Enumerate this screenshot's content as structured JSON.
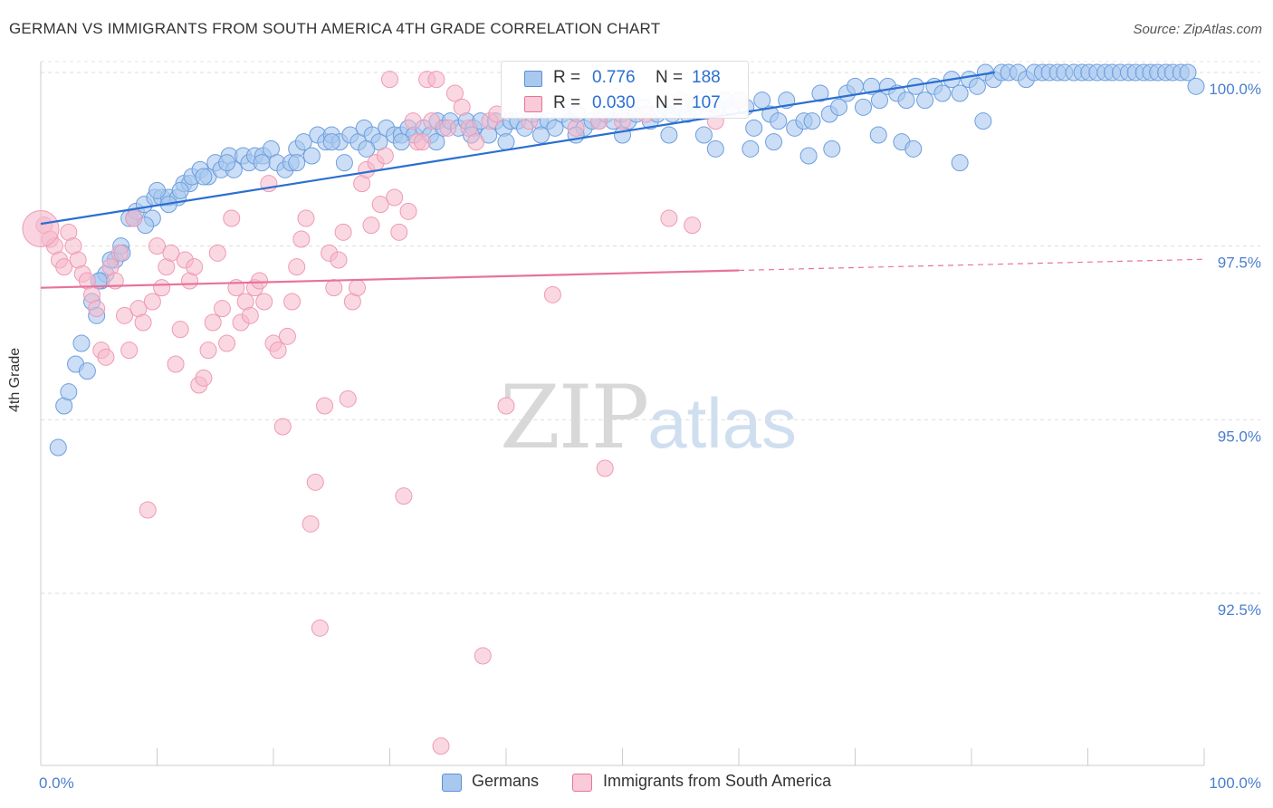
{
  "title": "GERMAN VS IMMIGRANTS FROM SOUTH AMERICA 4TH GRADE CORRELATION CHART",
  "source": "Source: ZipAtlas.com",
  "watermark": {
    "zip": "ZIP",
    "atlas": "atlas"
  },
  "legend": {
    "series1": {
      "r_label": "R =",
      "r_value": "0.776",
      "n_label": "N =",
      "n_value": "188"
    },
    "series2": {
      "r_label": "R =",
      "r_value": "0.030",
      "n_label": "N =",
      "n_value": "107"
    }
  },
  "chart_data": {
    "type": "scatter",
    "title": "GERMAN VS IMMIGRANTS FROM SOUTH AMERICA 4TH GRADE CORRELATION CHART",
    "xlabel": "",
    "ylabel": "4th Grade",
    "xlim": [
      0,
      100
    ],
    "ylim": [
      90.0,
      100.4
    ],
    "x_tick_labels": [
      "0.0%",
      "100.0%"
    ],
    "y_ticks": [
      {
        "value": 100.0,
        "label": "100.0%"
      },
      {
        "value": 97.5,
        "label": "97.5%"
      },
      {
        "value": 95.0,
        "label": "95.0%"
      },
      {
        "value": 92.5,
        "label": "92.5%"
      }
    ],
    "grid": true,
    "colors": {
      "blue_fill": "#a9c8ee",
      "blue_line": "#2a6fd1",
      "pink_fill": "#f5b8cb",
      "pink_line": "#e8739a",
      "tick_label": "#4a7fcf"
    },
    "series": [
      {
        "name": "Germans",
        "color": "#2a6fd1",
        "trend": {
          "x0": 0,
          "y0": 97.82,
          "x1": 82,
          "y1": 100.0,
          "dashed_to": null
        },
        "points": [
          [
            1.5,
            94.6
          ],
          [
            2,
            95.2
          ],
          [
            2.4,
            95.4
          ],
          [
            3,
            95.8
          ],
          [
            3.5,
            96.1
          ],
          [
            4,
            95.7
          ],
          [
            4.4,
            96.7
          ],
          [
            4.8,
            96.5
          ],
          [
            5.2,
            97.0
          ],
          [
            5.6,
            97.1
          ],
          [
            6.4,
            97.3
          ],
          [
            6.9,
            97.5
          ],
          [
            7.6,
            97.9
          ],
          [
            8.2,
            98.0
          ],
          [
            8.9,
            98.1
          ],
          [
            9.6,
            97.9
          ],
          [
            9.8,
            98.2
          ],
          [
            10.4,
            98.2
          ],
          [
            11,
            98.2
          ],
          [
            11.8,
            98.2
          ],
          [
            12.3,
            98.4
          ],
          [
            12.8,
            98.4
          ],
          [
            13,
            98.5
          ],
          [
            13.7,
            98.6
          ],
          [
            14.4,
            98.5
          ],
          [
            15,
            98.7
          ],
          [
            15.5,
            98.6
          ],
          [
            16.2,
            98.8
          ],
          [
            16.6,
            98.6
          ],
          [
            17.4,
            98.8
          ],
          [
            17.9,
            98.7
          ],
          [
            18.4,
            98.8
          ],
          [
            19.1,
            98.8
          ],
          [
            19.8,
            98.9
          ],
          [
            20.3,
            98.7
          ],
          [
            21,
            98.6
          ],
          [
            21.5,
            98.7
          ],
          [
            22,
            98.9
          ],
          [
            22.6,
            99.0
          ],
          [
            23.3,
            98.8
          ],
          [
            23.8,
            99.1
          ],
          [
            24.5,
            99.0
          ],
          [
            25,
            99.1
          ],
          [
            25.7,
            99.0
          ],
          [
            26.1,
            98.7
          ],
          [
            26.6,
            99.1
          ],
          [
            27.3,
            99.0
          ],
          [
            27.8,
            99.2
          ],
          [
            28.5,
            99.1
          ],
          [
            29.1,
            99.0
          ],
          [
            29.7,
            99.2
          ],
          [
            30.4,
            99.1
          ],
          [
            31,
            99.1
          ],
          [
            31.6,
            99.2
          ],
          [
            32.1,
            99.1
          ],
          [
            32.9,
            99.2
          ],
          [
            33.5,
            99.1
          ],
          [
            34.1,
            99.3
          ],
          [
            34.6,
            99.2
          ],
          [
            35.2,
            99.3
          ],
          [
            35.9,
            99.2
          ],
          [
            36.6,
            99.3
          ],
          [
            37.2,
            99.2
          ],
          [
            37.8,
            99.3
          ],
          [
            38.5,
            99.1
          ],
          [
            39.1,
            99.3
          ],
          [
            39.8,
            99.2
          ],
          [
            40.4,
            99.3
          ],
          [
            41,
            99.3
          ],
          [
            41.6,
            99.2
          ],
          [
            42.3,
            99.4
          ],
          [
            42.9,
            99.3
          ],
          [
            43.6,
            99.3
          ],
          [
            44.2,
            99.2
          ],
          [
            44.8,
            99.4
          ],
          [
            45.5,
            99.3
          ],
          [
            46.1,
            99.4
          ],
          [
            46.7,
            99.2
          ],
          [
            47.4,
            99.3
          ],
          [
            48,
            99.3
          ],
          [
            48.6,
            99.4
          ],
          [
            49.2,
            99.3
          ],
          [
            49.9,
            99.4
          ],
          [
            50.5,
            99.3
          ],
          [
            51.2,
            99.4
          ],
          [
            51.8,
            99.5
          ],
          [
            52.4,
            99.3
          ],
          [
            53,
            99.4
          ],
          [
            53.7,
            99.5
          ],
          [
            54.3,
            99.4
          ],
          [
            55,
            99.5
          ],
          [
            55.6,
            99.4
          ],
          [
            56.3,
            99.5
          ],
          [
            56.9,
            99.6
          ],
          [
            57.6,
            99.5
          ],
          [
            58.2,
            99.5
          ],
          [
            58.8,
            99.6
          ],
          [
            59.4,
            99.5
          ],
          [
            60,
            99.6
          ],
          [
            60.6,
            99.5
          ],
          [
            61.3,
            99.2
          ],
          [
            62,
            99.6
          ],
          [
            62.7,
            99.4
          ],
          [
            63.4,
            99.3
          ],
          [
            64.1,
            99.6
          ],
          [
            64.8,
            99.2
          ],
          [
            65.6,
            99.3
          ],
          [
            66.3,
            99.3
          ],
          [
            67,
            99.7
          ],
          [
            67.8,
            99.4
          ],
          [
            68.6,
            99.5
          ],
          [
            69.3,
            99.7
          ],
          [
            70,
            99.8
          ],
          [
            70.7,
            99.5
          ],
          [
            71.4,
            99.8
          ],
          [
            72.1,
            99.6
          ],
          [
            72.8,
            99.8
          ],
          [
            73.6,
            99.7
          ],
          [
            74.4,
            99.6
          ],
          [
            75.2,
            99.8
          ],
          [
            76,
            99.6
          ],
          [
            76.8,
            99.8
          ],
          [
            77.5,
            99.7
          ],
          [
            78.3,
            99.9
          ],
          [
            79,
            99.7
          ],
          [
            79.8,
            99.9
          ],
          [
            80.5,
            99.8
          ],
          [
            81.2,
            100.0
          ],
          [
            81.9,
            99.9
          ],
          [
            82.6,
            100.0
          ],
          [
            83.2,
            100.0
          ],
          [
            84,
            100.0
          ],
          [
            84.7,
            99.9
          ],
          [
            85.4,
            100.0
          ],
          [
            86.1,
            100.0
          ],
          [
            86.7,
            100.0
          ],
          [
            87.4,
            100.0
          ],
          [
            88,
            100.0
          ],
          [
            88.8,
            100.0
          ],
          [
            89.5,
            100.0
          ],
          [
            90.1,
            100.0
          ],
          [
            90.8,
            100.0
          ],
          [
            91.5,
            100.0
          ],
          [
            92.1,
            100.0
          ],
          [
            92.8,
            100.0
          ],
          [
            93.5,
            100.0
          ],
          [
            94.1,
            100.0
          ],
          [
            94.8,
            100.0
          ],
          [
            95.4,
            100.0
          ],
          [
            96,
            100.0
          ],
          [
            96.7,
            100.0
          ],
          [
            97.3,
            100.0
          ],
          [
            98,
            100.0
          ],
          [
            98.6,
            100.0
          ],
          [
            99.3,
            99.8
          ],
          [
            58,
            98.9
          ],
          [
            61,
            98.9
          ],
          [
            66,
            98.8
          ],
          [
            68,
            98.9
          ],
          [
            72,
            99.1
          ],
          [
            74,
            99.0
          ],
          [
            75,
            98.9
          ],
          [
            79,
            98.7
          ],
          [
            81,
            99.3
          ],
          [
            63,
            99.0
          ],
          [
            57,
            99.1
          ],
          [
            54,
            99.1
          ],
          [
            50,
            99.1
          ],
          [
            46,
            99.1
          ],
          [
            43,
            99.1
          ],
          [
            40,
            99.0
          ],
          [
            37,
            99.1
          ],
          [
            34,
            99.0
          ],
          [
            31,
            99.0
          ],
          [
            28,
            98.9
          ],
          [
            25,
            99.0
          ],
          [
            22,
            98.7
          ],
          [
            19,
            98.7
          ],
          [
            16,
            98.7
          ],
          [
            14,
            98.5
          ],
          [
            12,
            98.3
          ],
          [
            10,
            98.3
          ],
          [
            8,
            97.9
          ],
          [
            6,
            97.3
          ],
          [
            5,
            97.0
          ],
          [
            7,
            97.4
          ],
          [
            9,
            97.8
          ],
          [
            11,
            98.1
          ]
        ]
      },
      {
        "name": "Immigrants from South America",
        "color": "#e8739a",
        "trend": {
          "x0": 0,
          "y0": 96.9,
          "x1": 60,
          "y1": 97.15,
          "dashed_to": {
            "x": 100,
            "y": 97.31
          }
        },
        "points": [
          [
            0.3,
            97.8
          ],
          [
            0.8,
            97.6
          ],
          [
            1.2,
            97.5
          ],
          [
            1.6,
            97.3
          ],
          [
            2,
            97.2
          ],
          [
            2.4,
            97.7
          ],
          [
            2.8,
            97.5
          ],
          [
            3.2,
            97.3
          ],
          [
            3.6,
            97.1
          ],
          [
            4,
            97.0
          ],
          [
            4.4,
            96.8
          ],
          [
            4.8,
            96.6
          ],
          [
            5.2,
            96.0
          ],
          [
            5.6,
            95.9
          ],
          [
            6,
            97.2
          ],
          [
            6.4,
            97.0
          ],
          [
            6.8,
            97.4
          ],
          [
            7.2,
            96.5
          ],
          [
            7.6,
            96.0
          ],
          [
            8,
            97.9
          ],
          [
            8.4,
            96.6
          ],
          [
            8.8,
            96.4
          ],
          [
            9.2,
            93.7
          ],
          [
            9.6,
            96.7
          ],
          [
            10,
            97.5
          ],
          [
            10.4,
            96.9
          ],
          [
            10.8,
            97.2
          ],
          [
            11.2,
            97.4
          ],
          [
            11.6,
            95.8
          ],
          [
            12,
            96.3
          ],
          [
            12.4,
            97.3
          ],
          [
            12.8,
            97.0
          ],
          [
            13.2,
            97.2
          ],
          [
            13.6,
            95.5
          ],
          [
            14,
            95.6
          ],
          [
            14.4,
            96.0
          ],
          [
            14.8,
            96.4
          ],
          [
            15.2,
            97.4
          ],
          [
            15.6,
            96.6
          ],
          [
            16,
            96.1
          ],
          [
            16.4,
            97.9
          ],
          [
            16.8,
            96.9
          ],
          [
            17.2,
            96.4
          ],
          [
            17.6,
            96.7
          ],
          [
            18,
            96.5
          ],
          [
            18.4,
            96.9
          ],
          [
            18.8,
            97.0
          ],
          [
            19.2,
            96.7
          ],
          [
            19.6,
            98.4
          ],
          [
            20,
            96.1
          ],
          [
            20.4,
            96.0
          ],
          [
            20.8,
            94.9
          ],
          [
            21.2,
            96.2
          ],
          [
            21.6,
            96.7
          ],
          [
            22,
            97.2
          ],
          [
            22.4,
            97.6
          ],
          [
            22.8,
            97.9
          ],
          [
            23.2,
            93.5
          ],
          [
            23.6,
            94.1
          ],
          [
            24,
            92.0
          ],
          [
            24.4,
            95.2
          ],
          [
            24.8,
            97.4
          ],
          [
            25.2,
            96.9
          ],
          [
            25.6,
            97.3
          ],
          [
            26,
            97.7
          ],
          [
            26.4,
            95.3
          ],
          [
            26.8,
            96.7
          ],
          [
            27.2,
            96.9
          ],
          [
            27.6,
            98.4
          ],
          [
            28,
            98.6
          ],
          [
            28.4,
            97.8
          ],
          [
            28.8,
            98.7
          ],
          [
            29.2,
            98.1
          ],
          [
            29.6,
            98.8
          ],
          [
            30,
            99.9
          ],
          [
            30.4,
            98.2
          ],
          [
            30.8,
            97.7
          ],
          [
            31.2,
            93.9
          ],
          [
            31.6,
            98.0
          ],
          [
            32,
            99.3
          ],
          [
            32.4,
            99.0
          ],
          [
            32.8,
            99.0
          ],
          [
            33.2,
            99.9
          ],
          [
            33.6,
            99.3
          ],
          [
            34,
            99.9
          ],
          [
            34.4,
            90.3
          ],
          [
            35,
            99.2
          ],
          [
            35.6,
            99.7
          ],
          [
            36.2,
            99.5
          ],
          [
            36.8,
            99.2
          ],
          [
            37.4,
            99.0
          ],
          [
            38,
            91.6
          ],
          [
            38.6,
            99.3
          ],
          [
            39.2,
            99.4
          ],
          [
            40,
            95.2
          ],
          [
            42,
            99.3
          ],
          [
            44,
            96.8
          ],
          [
            46,
            99.2
          ],
          [
            48,
            99.3
          ],
          [
            50,
            99.3
          ],
          [
            52,
            99.4
          ],
          [
            54,
            97.9
          ],
          [
            56,
            97.8
          ],
          [
            58,
            99.3
          ],
          [
            60,
            99.6
          ],
          [
            48.5,
            94.3
          ],
          [
            55,
            99.6
          ]
        ]
      }
    ]
  },
  "bottom_legend": [
    "Germans",
    "Immigrants from South America"
  ]
}
